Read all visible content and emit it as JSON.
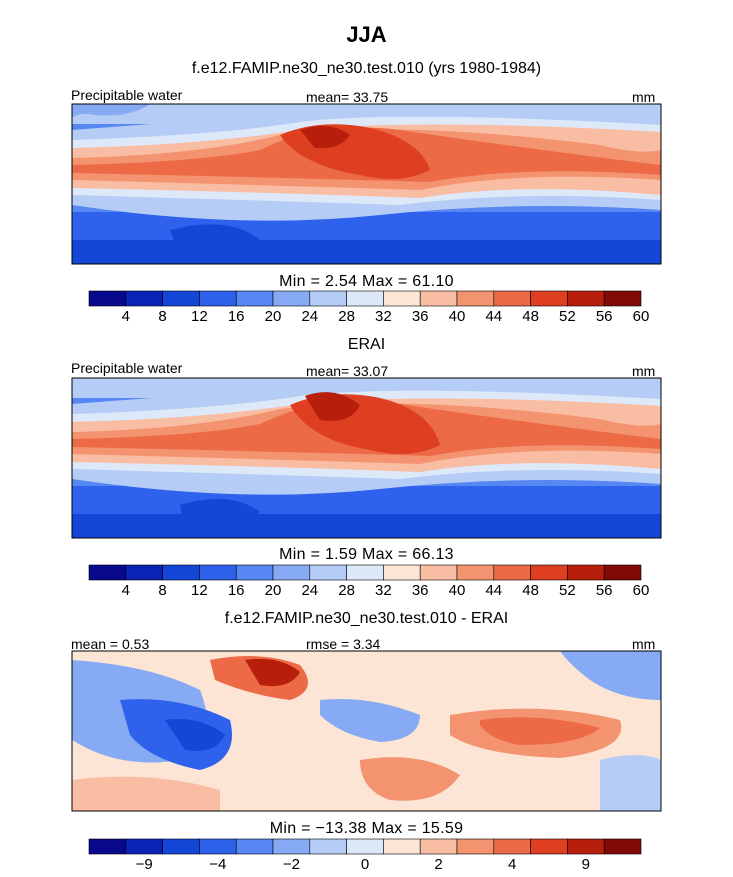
{
  "figure_title": "JJA",
  "panels": [
    {
      "title": "f.e12.FAMIP.ne30_ne30.test.010 (yrs 1980-1984)",
      "left_label": "Precipitable water",
      "center_label": "mean=  33.75",
      "right_label": "mm",
      "minmax": "Min =    2.54  Max =   61.10",
      "colorbar_labels": [
        "4",
        "8",
        "12",
        "16",
        "20",
        "24",
        "28",
        "32",
        "36",
        "40",
        "44",
        "48",
        "52",
        "56",
        "60"
      ]
    },
    {
      "title": "ERAI",
      "left_label": "Precipitable water",
      "center_label": "mean=  33.07",
      "right_label": "mm",
      "minmax": "Min =    1.59  Max =   66.13",
      "colorbar_labels": [
        "4",
        "8",
        "12",
        "16",
        "20",
        "24",
        "28",
        "32",
        "36",
        "40",
        "44",
        "48",
        "52",
        "56",
        "60"
      ]
    },
    {
      "title": "f.e12.FAMIP.ne30_ne30.test.010 - ERAI",
      "left_label": "mean =   0.53",
      "center_label": "rmse =   3.34",
      "right_label": "mm",
      "minmax": "Min = −13.38  Max =   15.59",
      "colorbar_labels": [
        "−9",
        "−4",
        "−2",
        "0",
        "2",
        "4",
        "9"
      ]
    }
  ],
  "colors": {
    "abs_palette": [
      "#08088c",
      "#0a23b4",
      "#1446d8",
      "#2f62ec",
      "#5687f2",
      "#86abf4",
      "#b5ccf6",
      "#dde8f8",
      "#fde5d6",
      "#f9bda4",
      "#f3936f",
      "#ec6a45",
      "#dd3f20",
      "#b81e0c",
      "#800a05"
    ],
    "diff_palette": [
      "#08088c",
      "#0a23b4",
      "#1446d8",
      "#2f62ec",
      "#5687f2",
      "#86abf4",
      "#b5ccf6",
      "#dde8f8",
      "#fde5d6",
      "#f9bda4",
      "#f3936f",
      "#ec6a45",
      "#dd3f20",
      "#b81e0c",
      "#800a05"
    ]
  },
  "chart_data": [
    {
      "type": "heatmap",
      "variable": "Precipitable water",
      "units": "mm",
      "levels": [
        4,
        8,
        12,
        16,
        20,
        24,
        28,
        32,
        36,
        40,
        44,
        48,
        52,
        56,
        60
      ],
      "mean": 33.75,
      "min": 2.54,
      "max": 61.1
    },
    {
      "type": "heatmap",
      "variable": "Precipitable water",
      "units": "mm",
      "levels": [
        4,
        8,
        12,
        16,
        20,
        24,
        28,
        32,
        36,
        40,
        44,
        48,
        52,
        56,
        60
      ],
      "mean": 33.07,
      "min": 1.59,
      "max": 66.13
    },
    {
      "type": "heatmap",
      "units": "mm",
      "levels": [
        -9,
        -4,
        -2,
        0,
        2,
        4,
        9
      ],
      "mean": 0.53,
      "rmse": 3.34,
      "min": -13.38,
      "max": 15.59
    }
  ]
}
